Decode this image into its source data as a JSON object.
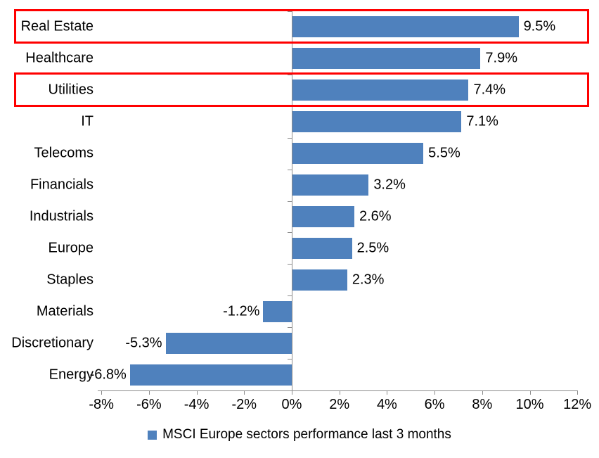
{
  "chart_data": {
    "type": "bar",
    "orientation": "horizontal",
    "title": "",
    "categories": [
      "Real Estate",
      "Healthcare",
      "Utilities",
      "IT",
      "Telecoms",
      "Financials",
      "Industrials",
      "Europe",
      "Staples",
      "Materials",
      "Discretionary",
      "Energy"
    ],
    "values": [
      9.5,
      7.9,
      7.4,
      7.1,
      5.5,
      3.2,
      2.6,
      2.5,
      2.3,
      -1.2,
      -5.3,
      -6.8
    ],
    "data_labels": [
      "9.5%",
      "7.9%",
      "7.4%",
      "7.1%",
      "5.5%",
      "3.2%",
      "2.6%",
      "2.5%",
      "2.3%",
      "-1.2%",
      "-5.3%",
      "-6.8%"
    ],
    "x_axis": {
      "min": -8,
      "max": 12,
      "tick_step": 2,
      "tick_labels": [
        "-8%",
        "-6%",
        "-4%",
        "-2%",
        "0%",
        "2%",
        "4%",
        "6%",
        "8%",
        "10%",
        "12%"
      ]
    },
    "grid": false,
    "legend": {
      "label": "MSCI Europe sectors performance last 3 months",
      "position": "bottom"
    },
    "highlighted_categories": [
      "Real Estate",
      "Utilities"
    ],
    "colors": {
      "bar": "#4F81BD",
      "axis": "#8C8C8C",
      "highlight": "#FF0000",
      "text": "#000000",
      "background": "#FFFFFF"
    }
  }
}
